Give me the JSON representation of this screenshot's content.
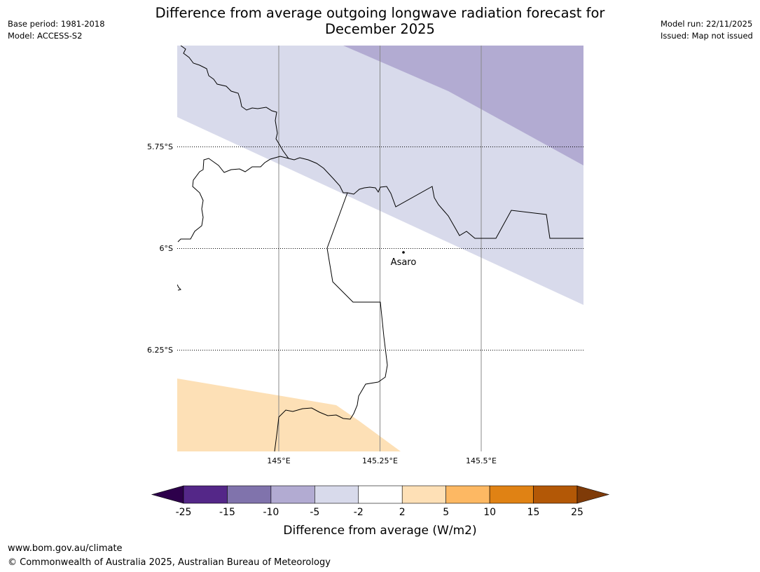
{
  "header": {
    "title_line1": "Difference from average outgoing longwave radiation forecast for",
    "title_line2": "December 2025",
    "base_period": "Base period: 1981-2018",
    "model": "Model: ACCESS-S2",
    "model_run": "Model run: 22/11/2025",
    "issued": "Issued: Map not issued"
  },
  "map": {
    "lat_labels": [
      "5.75°S",
      "6°S",
      "6.25°S"
    ],
    "lon_labels": [
      "145°E",
      "145.25°E",
      "145.5°E"
    ],
    "place": {
      "name": "Asaro"
    }
  },
  "legend": {
    "ticks": [
      "-25",
      "-15",
      "-10",
      "-5",
      "-2",
      "2",
      "5",
      "10",
      "15",
      "25"
    ],
    "colors": [
      "#2d004b",
      "#542788",
      "#8073ac",
      "#b2abd2",
      "#d8daeb",
      "#ffffff",
      "#fee0b6",
      "#fdb863",
      "#e08214",
      "#b35806",
      "#7f3b08"
    ],
    "label": "Difference from average (W/m2)"
  },
  "footer": {
    "url": "www.bom.gov.au/climate",
    "copyright": "© Commonwealth of Australia 2025, Australian Bureau of Meteorology"
  }
}
